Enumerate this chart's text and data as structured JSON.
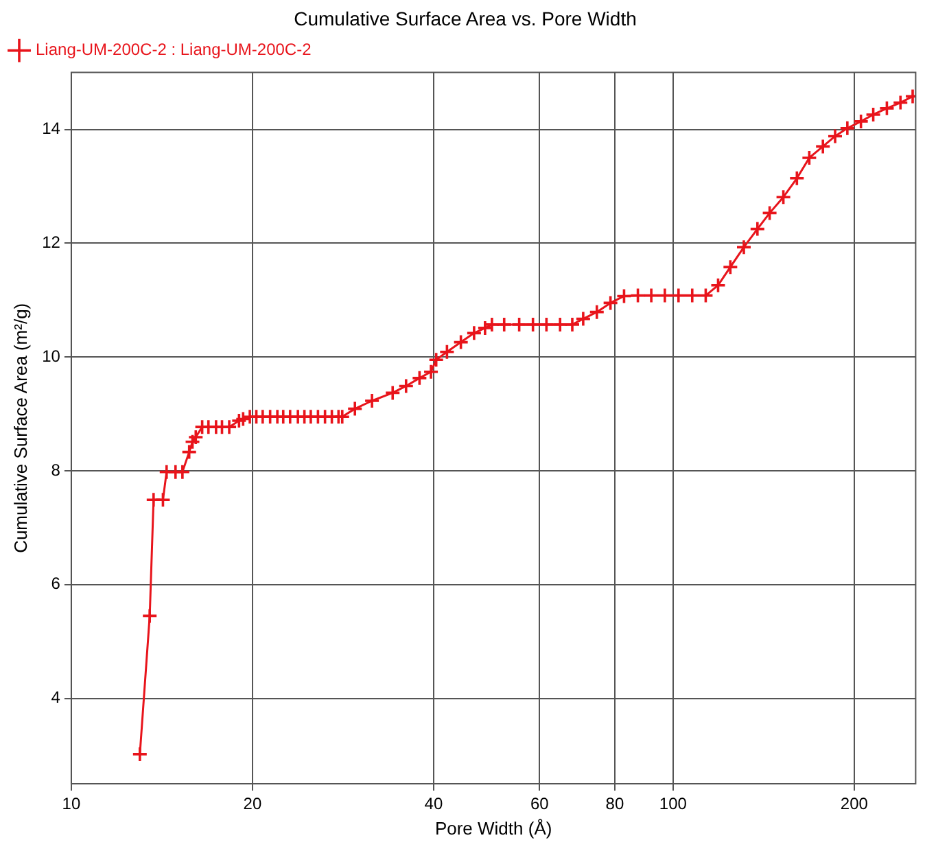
{
  "chart_data": {
    "type": "line",
    "title": "Cumulative Surface Area vs. Pore Width",
    "xlabel": "Pore Width (Å)",
    "ylabel": "Cumulative Surface Area (m²/g)",
    "x": [
      13.0,
      13.5,
      13.7,
      14.2,
      14.4,
      14.9,
      15.3,
      15.7,
      15.9,
      16.1,
      16.5,
      16.9,
      17.4,
      17.8,
      18.3,
      19.0,
      19.3,
      19.8,
      20.3,
      20.8,
      21.4,
      22.0,
      22.5,
      23.1,
      23.8,
      24.4,
      25.0,
      25.7,
      26.4,
      27.1,
      27.8,
      28.2,
      29.6,
      31.6,
      34.2,
      36.0,
      37.9,
      39.6,
      40.4,
      42.1,
      44.4,
      46.7,
      48.7,
      50.0,
      52.4,
      55.5,
      58.5,
      61.6,
      64.9,
      68.0,
      70.9,
      74.7,
      78.7,
      82.9,
      87.4,
      92.0,
      96.9,
      102.1,
      107.6,
      113.3,
      118.8,
      124.5,
      131.1,
      138.1,
      144.7,
      152.5,
      160.6,
      168.4,
      177.4,
      185.9,
      194.8,
      205.2,
      215.1,
      226.6,
      238.7,
      250.1
    ],
    "series": [
      {
        "name": "Liang-UM-200C-2 : Liang-UM-200C-2",
        "color": "#e8141b",
        "values": [
          3.02,
          5.45,
          7.49,
          7.49,
          7.98,
          7.98,
          7.98,
          8.33,
          8.51,
          8.59,
          8.77,
          8.77,
          8.77,
          8.77,
          8.77,
          8.88,
          8.91,
          8.95,
          8.95,
          8.95,
          8.95,
          8.95,
          8.95,
          8.95,
          8.95,
          8.95,
          8.95,
          8.95,
          8.95,
          8.95,
          8.95,
          8.95,
          9.09,
          9.23,
          9.37,
          9.49,
          9.63,
          9.74,
          9.95,
          10.09,
          10.26,
          10.42,
          10.51,
          10.57,
          10.57,
          10.57,
          10.57,
          10.57,
          10.57,
          10.57,
          10.67,
          10.79,
          10.95,
          11.07,
          11.08,
          11.08,
          11.08,
          11.08,
          11.08,
          11.08,
          11.26,
          11.58,
          11.93,
          12.25,
          12.53,
          12.81,
          13.14,
          13.5,
          13.7,
          13.88,
          14.02,
          14.14,
          14.26,
          14.37,
          14.47,
          14.58
        ]
      }
    ],
    "xlim": [
      10,
      253
    ],
    "ylim": [
      2.5,
      15
    ],
    "xticks": [
      10,
      20,
      40,
      60,
      80,
      100,
      200
    ],
    "yticks": [
      4,
      6,
      8,
      10,
      12,
      14
    ],
    "log": "x",
    "grid": true,
    "legend": "top left",
    "marker": "cross",
    "line_style": "solid"
  }
}
